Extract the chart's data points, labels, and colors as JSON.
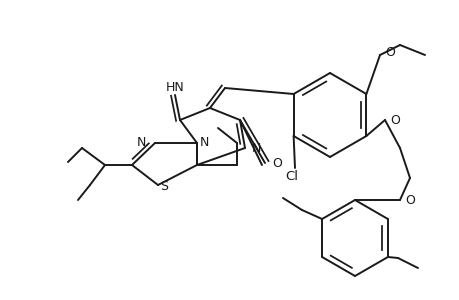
{
  "background_color": "#ffffff",
  "line_color": "#1a1a1a",
  "line_width": 1.4,
  "font_size": 8.5,
  "fig_width": 4.6,
  "fig_height": 3.0,
  "dpi": 100,
  "xlim": [
    0,
    460
  ],
  "ylim": [
    0,
    300
  ]
}
